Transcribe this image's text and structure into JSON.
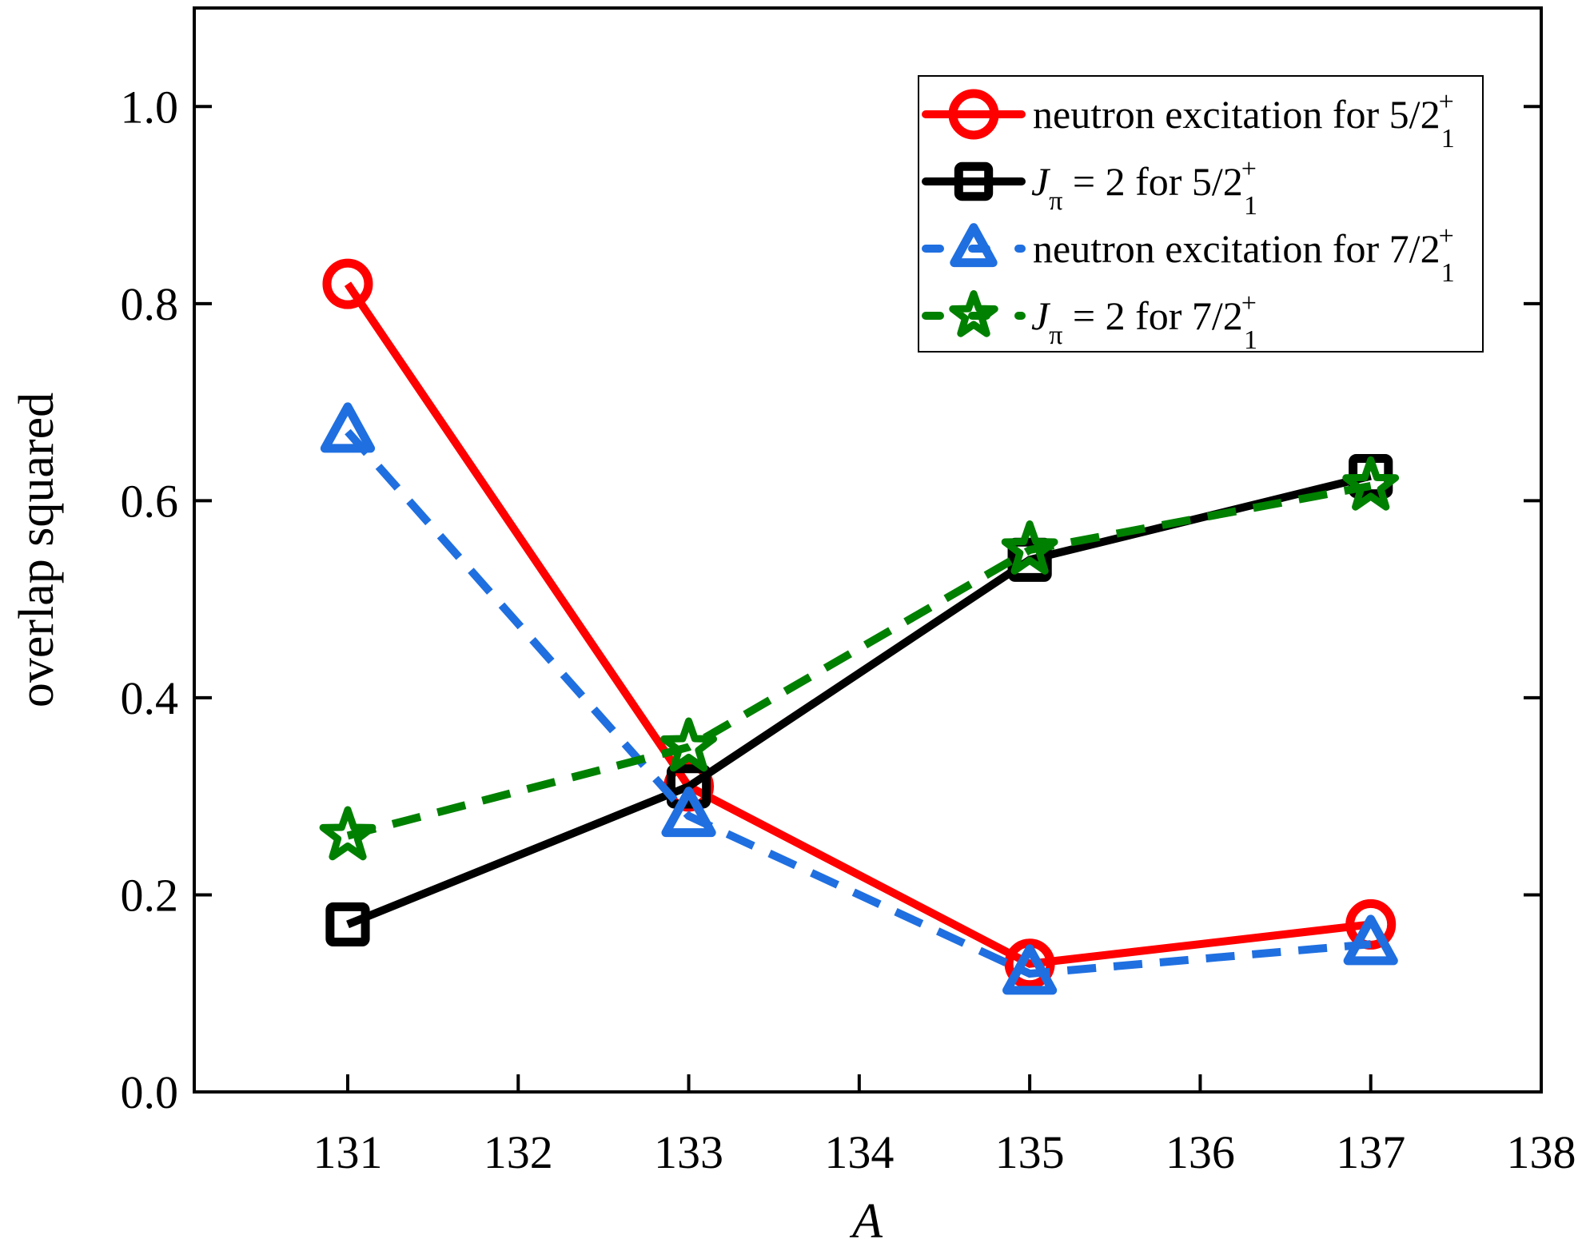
{
  "chart_data": {
    "type": "line",
    "title": "",
    "xlabel": "A",
    "ylabel": "overlap squared",
    "xlim": [
      130.1,
      138
    ],
    "ylim": [
      0,
      1.1
    ],
    "xticks": [
      131,
      132,
      133,
      134,
      135,
      136,
      137,
      138
    ],
    "yticks": [
      "0.0",
      "0.2",
      "0.4",
      "0.6",
      "0.8",
      "1.0"
    ],
    "grid": false,
    "legend_position": "top-right",
    "x": [
      131,
      133,
      135,
      137
    ],
    "series": [
      {
        "name": "neutron excitation for 5/2_1^+",
        "color": "#ff0000",
        "marker": "circle",
        "dash": false,
        "legend": {
          "pre": "neutron excitation for 5/2",
          "sub": "1",
          "sup": "+"
        },
        "values": [
          0.82,
          0.31,
          0.13,
          0.17
        ]
      },
      {
        "name": "J_π = 2 for 5/2_1^+",
        "color": "#000000",
        "marker": "square",
        "dash": false,
        "legend": {
          "j": "J",
          "jsub": "π",
          "pre": " = 2 for 5/2",
          "sub": "1",
          "sup": "+"
        },
        "values": [
          0.17,
          0.31,
          0.54,
          0.625
        ]
      },
      {
        "name": "neutron excitation for 7/2_1^+",
        "color": "#1f6fe0",
        "marker": "triangle",
        "dash": true,
        "legend": {
          "pre": "neutron excitation for 7/2",
          "sub": "1",
          "sup": "+"
        },
        "values": [
          0.67,
          0.28,
          0.12,
          0.15
        ]
      },
      {
        "name": "J_π = 2 for 7/2_1^+",
        "color": "#008000",
        "marker": "star",
        "dash": true,
        "legend": {
          "j": "J",
          "jsub": "π",
          "pre": " = 2 for 7/2",
          "sub": "1",
          "sup": "+"
        },
        "values": [
          0.26,
          0.35,
          0.55,
          0.615
        ]
      }
    ]
  }
}
